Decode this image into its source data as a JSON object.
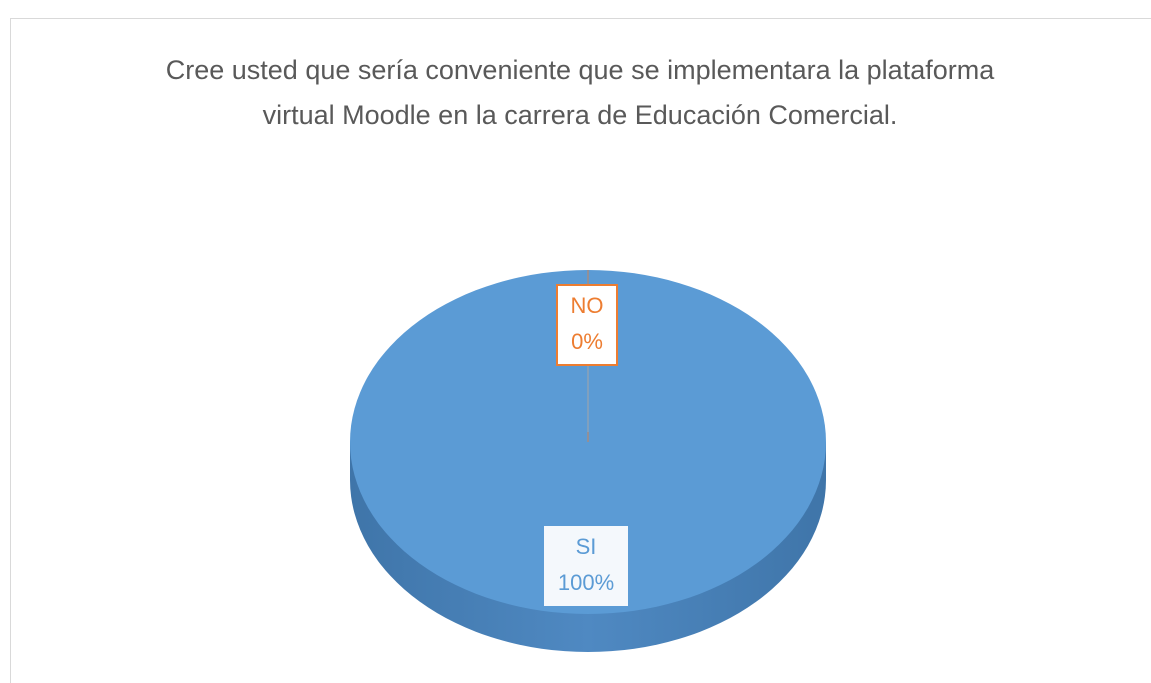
{
  "chart_data": {
    "type": "pie",
    "title": "Cree usted que sería conveniente que se implementara la plataforma virtual Moodle en la carrera de Educación Comercial.",
    "categories": [
      "SI",
      "NO"
    ],
    "values": [
      100,
      0
    ],
    "value_labels": [
      "100%",
      "0%"
    ],
    "colors": [
      "#5b9bd5",
      "#ed7d31"
    ]
  }
}
